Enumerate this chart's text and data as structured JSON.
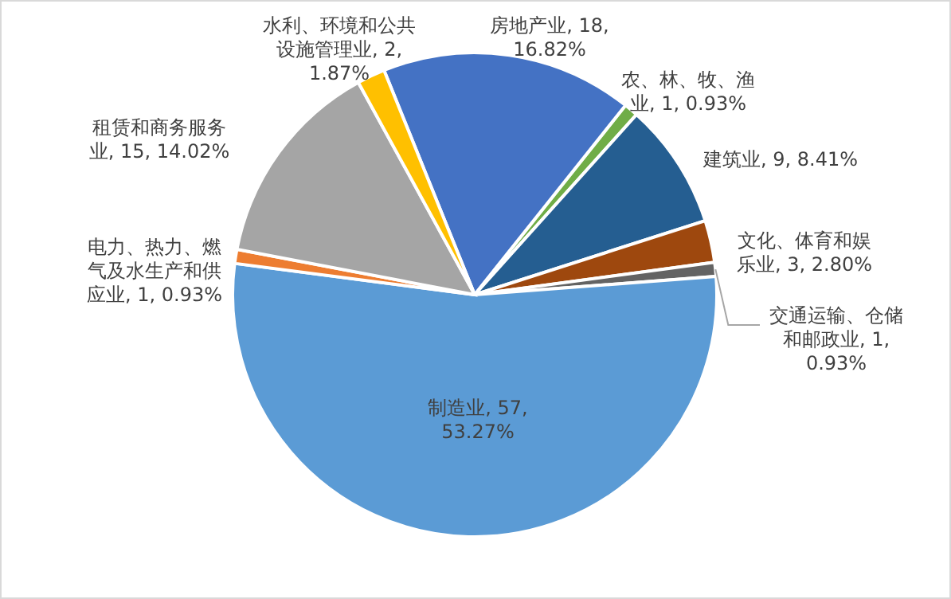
{
  "chart_data": {
    "type": "pie",
    "categories": [
      "房地产业",
      "农、林、牧、渔业",
      "建筑业",
      "文化、体育和娱乐业",
      "交通运输、仓储和邮政业",
      "制造业",
      "电力、热力、燃气及水生产和供应业",
      "租赁和商务服务业",
      "水利、环境和公共设施管理业"
    ],
    "values": [
      18,
      1,
      9,
      3,
      1,
      57,
      1,
      15,
      2
    ],
    "value_labels": [
      "18, 16.82%",
      "1, 0.93%",
      "9, 8.41%",
      "3, 2.80%",
      "1, 0.93%",
      "57, 53.27%",
      "1, 0.93%",
      "15, 14.02%",
      "2, 1.87%"
    ],
    "colors": [
      "#4472c4",
      "#70ad47",
      "#255e91",
      "#9e480e",
      "#636363",
      "#5b9bd5",
      "#ed7d31",
      "#a5a5a5",
      "#ffc000"
    ]
  }
}
